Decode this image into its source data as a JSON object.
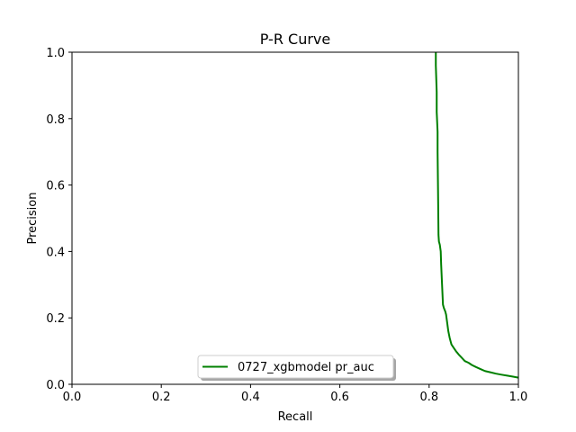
{
  "chart_data": {
    "type": "line",
    "title": "P-R Curve",
    "xlabel": "Recall",
    "ylabel": "Precision",
    "xlim": [
      0.0,
      1.0
    ],
    "ylim": [
      0.0,
      1.0
    ],
    "xticks": [
      0.0,
      0.2,
      0.4,
      0.6,
      0.8,
      1.0
    ],
    "yticks": [
      0.0,
      0.2,
      0.4,
      0.6,
      0.8,
      1.0
    ],
    "xtick_labels": [
      "0.0",
      "0.2",
      "0.4",
      "0.6",
      "0.8",
      "1.0"
    ],
    "ytick_labels": [
      "0.0",
      "0.2",
      "0.4",
      "0.6",
      "0.8",
      "1.0"
    ],
    "grid": false,
    "legend_position": "lower center",
    "series": [
      {
        "name": "0727_xgbmodel pr_auc",
        "color": "#008000",
        "x": [
          0.815,
          0.815,
          0.817,
          0.817,
          0.819,
          0.819,
          0.82,
          0.821,
          0.822,
          0.824,
          0.826,
          0.827,
          0.829,
          0.831,
          0.833,
          0.836,
          0.838,
          0.84,
          0.843,
          0.846,
          0.85,
          0.855,
          0.86,
          0.866,
          0.873,
          0.88,
          0.888,
          0.896,
          0.905,
          0.915,
          0.925,
          0.938,
          0.95,
          0.962,
          0.975,
          0.988,
          1.0
        ],
        "y": [
          1.0,
          0.96,
          0.88,
          0.82,
          0.76,
          0.7,
          0.58,
          0.45,
          0.43,
          0.42,
          0.4,
          0.36,
          0.3,
          0.24,
          0.23,
          0.22,
          0.21,
          0.19,
          0.16,
          0.14,
          0.12,
          0.11,
          0.1,
          0.09,
          0.08,
          0.07,
          0.065,
          0.058,
          0.052,
          0.046,
          0.04,
          0.036,
          0.032,
          0.029,
          0.026,
          0.023,
          0.02
        ]
      }
    ]
  }
}
